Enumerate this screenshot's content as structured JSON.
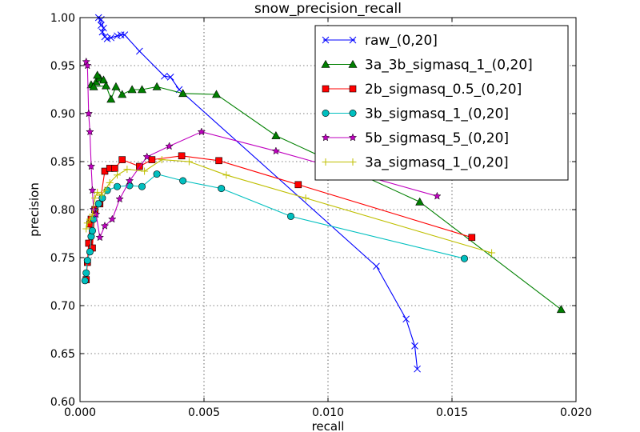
{
  "figure": {
    "title": "snow_precision_recall",
    "xlabel": "recall",
    "ylabel": "precision"
  },
  "chart_data": {
    "type": "line",
    "title": "snow_precision_recall",
    "xlabel": "recall",
    "ylabel": "precision",
    "xlim": [
      0.0,
      0.02
    ],
    "ylim": [
      0.6,
      1.0
    ],
    "xticks": [
      "0.000",
      "0.005",
      "0.010",
      "0.015",
      "0.020"
    ],
    "yticks": [
      "0.60",
      "0.65",
      "0.70",
      "0.75",
      "0.80",
      "0.85",
      "0.90",
      "0.95",
      "1.00"
    ],
    "grid": true,
    "legend_position": "top-right",
    "series": [
      {
        "name": "raw_(0,20]",
        "color": "#0000ff",
        "marker": "x",
        "x": [
          0.00085,
          0.00075,
          0.00085,
          0.00095,
          0.0009,
          0.001,
          0.0011,
          0.00125,
          0.0015,
          0.00165,
          0.0018,
          0.0024,
          0.0034,
          0.00365,
          0.004,
          0.01195,
          0.01315,
          0.0135,
          0.0136
        ],
        "y": [
          0.992,
          1.0,
          0.998,
          0.989,
          0.985,
          0.98,
          0.978,
          0.979,
          0.981,
          0.982,
          0.982,
          0.965,
          0.939,
          0.938,
          0.925,
          0.741,
          0.686,
          0.658,
          0.634
        ]
      },
      {
        "name": "3a_3b_sigmasq_1_(0,20]",
        "color": "#008000",
        "marker": "triangle",
        "x": [
          0.00045,
          0.00065,
          0.0008,
          0.00095,
          0.0007,
          0.00055,
          0.00105,
          0.00125,
          0.00145,
          0.0017,
          0.0021,
          0.0025,
          0.0031,
          0.00415,
          0.0055,
          0.0079,
          0.0137,
          0.0194
        ],
        "y": [
          0.93,
          0.933,
          0.937,
          0.935,
          0.94,
          0.928,
          0.929,
          0.915,
          0.928,
          0.92,
          0.925,
          0.925,
          0.928,
          0.921,
          0.92,
          0.877,
          0.808,
          0.696
        ]
      },
      {
        "name": "2b_sigmasq_0.5_(0,20]",
        "color": "#ff0000",
        "marker": "square",
        "x": [
          0.00025,
          0.0003,
          0.00035,
          0.0004,
          0.00045,
          0.0005,
          0.0006,
          0.0008,
          0.001,
          0.0012,
          0.0014,
          0.0017,
          0.0024,
          0.0029,
          0.0041,
          0.0056,
          0.0088,
          0.0158
        ],
        "y": [
          0.727,
          0.745,
          0.765,
          0.785,
          0.79,
          0.76,
          0.8,
          0.806,
          0.84,
          0.843,
          0.843,
          0.852,
          0.845,
          0.852,
          0.856,
          0.851,
          0.826,
          0.771
        ]
      },
      {
        "name": "3b_sigmasq_1_(0,20]",
        "color": "#00bfbf",
        "marker": "circle",
        "x": [
          0.0002,
          0.00025,
          0.0003,
          0.0004,
          0.00045,
          0.0005,
          0.00055,
          0.00075,
          0.0009,
          0.0011,
          0.0015,
          0.002,
          0.0025,
          0.0031,
          0.00415,
          0.0057,
          0.0085,
          0.0155
        ],
        "y": [
          0.726,
          0.734,
          0.747,
          0.756,
          0.772,
          0.778,
          0.79,
          0.806,
          0.812,
          0.82,
          0.824,
          0.825,
          0.824,
          0.837,
          0.83,
          0.822,
          0.793,
          0.749
        ]
      },
      {
        "name": "5b_sigmasq_5_(0,20]",
        "color": "#bf00bf",
        "marker": "star",
        "x": [
          0.00025,
          0.0003,
          0.00035,
          0.0004,
          0.00045,
          0.0005,
          0.00055,
          0.00065,
          0.0008,
          0.001,
          0.0013,
          0.0016,
          0.002,
          0.0027,
          0.0036,
          0.0049,
          0.0079,
          0.0144
        ],
        "y": [
          0.954,
          0.95,
          0.9,
          0.881,
          0.845,
          0.82,
          0.8,
          0.795,
          0.771,
          0.783,
          0.79,
          0.811,
          0.83,
          0.855,
          0.866,
          0.881,
          0.861,
          0.814
        ]
      },
      {
        "name": "3a_sigmasq_1_(0,20]",
        "color": "#bfbf00",
        "marker": "plus",
        "x": [
          0.00025,
          0.0003,
          0.0004,
          0.0005,
          0.0006,
          0.0007,
          0.00085,
          0.001,
          0.0012,
          0.0015,
          0.0019,
          0.0026,
          0.0033,
          0.0044,
          0.0059,
          0.0091,
          0.0166
        ],
        "y": [
          0.78,
          0.786,
          0.79,
          0.795,
          0.812,
          0.818,
          0.815,
          0.82,
          0.828,
          0.836,
          0.842,
          0.84,
          0.852,
          0.85,
          0.836,
          0.812,
          0.755
        ]
      }
    ]
  }
}
